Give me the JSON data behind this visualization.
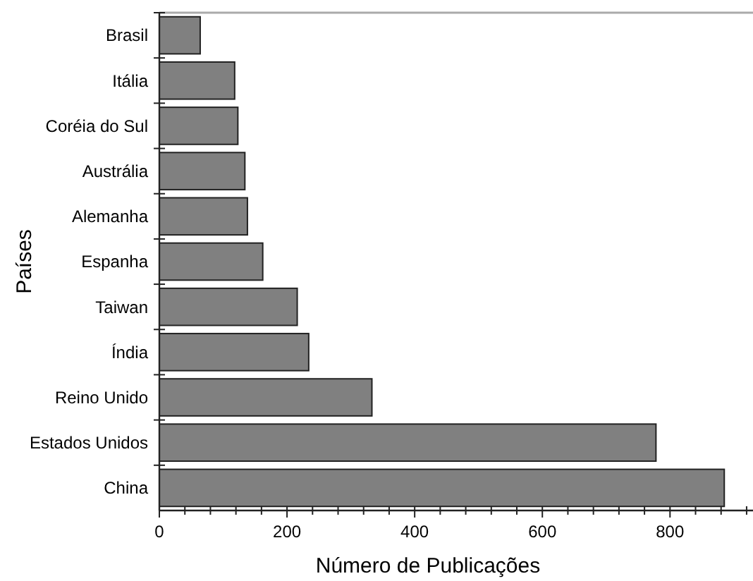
{
  "chart_data": {
    "type": "bar",
    "orientation": "horizontal",
    "xlabel": "Número de Publicações",
    "ylabel": "Países",
    "categories": [
      "Brasil",
      "Itália",
      "Coréia do Sul",
      "Austrália",
      "Alemanha",
      "Espanha",
      "Taiwan",
      "Índia",
      "Reino Unido",
      "Estados Unidos",
      "China"
    ],
    "values": [
      64,
      118,
      123,
      134,
      138,
      162,
      216,
      234,
      333,
      778,
      885
    ],
    "color": "#808080",
    "xlim": [
      0,
      930
    ],
    "xticks": [
      0,
      {
        "value": 40,
        "label": null
      },
      {
        "value": 80,
        "label": null
      },
      {
        "value": 120,
        "label": null
      },
      {
        "value": 160,
        "label": null
      },
      200,
      {
        "value": 240,
        "label": null
      },
      {
        "value": 280,
        "label": null
      },
      {
        "value": 320,
        "label": null
      },
      {
        "value": 360,
        "label": null
      },
      400,
      {
        "value": 440,
        "label": null
      },
      {
        "value": 480,
        "label": null
      },
      {
        "value": 520,
        "label": null
      },
      {
        "value": 560,
        "label": null
      },
      600,
      {
        "value": 640,
        "label": null
      },
      {
        "value": 680,
        "label": null
      },
      {
        "value": 720,
        "label": null
      },
      {
        "value": 760,
        "label": null
      },
      800,
      {
        "value": 840,
        "label": null
      },
      {
        "value": 880,
        "label": null
      },
      {
        "value": 920,
        "label": null
      }
    ],
    "grid": false
  }
}
